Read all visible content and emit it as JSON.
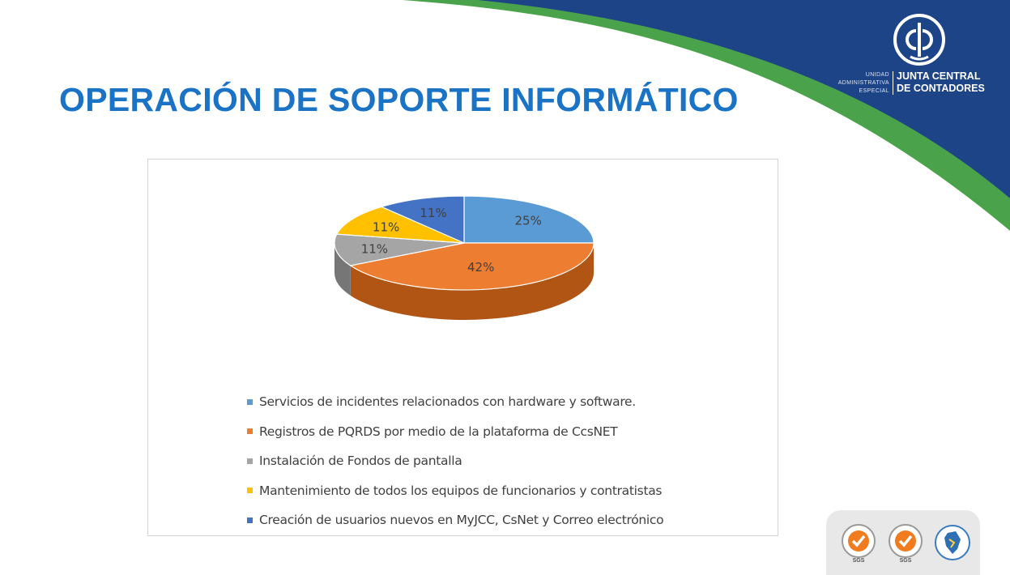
{
  "title": "OPERACIÓN DE SOPORTE INFORMÁTICO",
  "colors": {
    "title": "#1a73c4",
    "header_blue": "#1e4488",
    "header_green": "#4aa34a"
  },
  "logo": {
    "unit_text": "UNIDAD\nADMINISTRATIVA\nESPECIAL",
    "name": "JUNTA CENTRAL\nDE CONTADORES",
    "icon": "jcc-emblem-icon"
  },
  "certifications": {
    "badge_1_text": "SGS",
    "badge_2_text": "SGS",
    "icons": [
      "sgs-certification-icon",
      "sgs-certification-icon",
      "colombia-map-seal-icon"
    ]
  },
  "chart_data": {
    "type": "pie",
    "style": "3d",
    "categories": [
      "Servicios de incidentes relacionados con hardware y software.",
      "Registros de PQRDS por medio de la plataforma de CcsNET",
      "Instalación de Fondos de pantalla",
      "Mantenimiento de todos los equipos de funcionarios y contratistas",
      "Creación de usuarios nuevos en MyJCC, CsNet y Correo electrónico"
    ],
    "values": [
      25,
      42,
      11,
      11,
      11
    ],
    "labels": [
      "25%",
      "42%",
      "11%",
      "11%",
      "11%"
    ],
    "colors": [
      "#5b9bd5",
      "#ed7d31",
      "#a5a5a5",
      "#ffc000",
      "#4472c4"
    ],
    "side_colors": [
      "#3b6e9e",
      "#b05514",
      "#767676",
      "#c09000",
      "#2f5597"
    ],
    "legend_position": "bottom"
  }
}
